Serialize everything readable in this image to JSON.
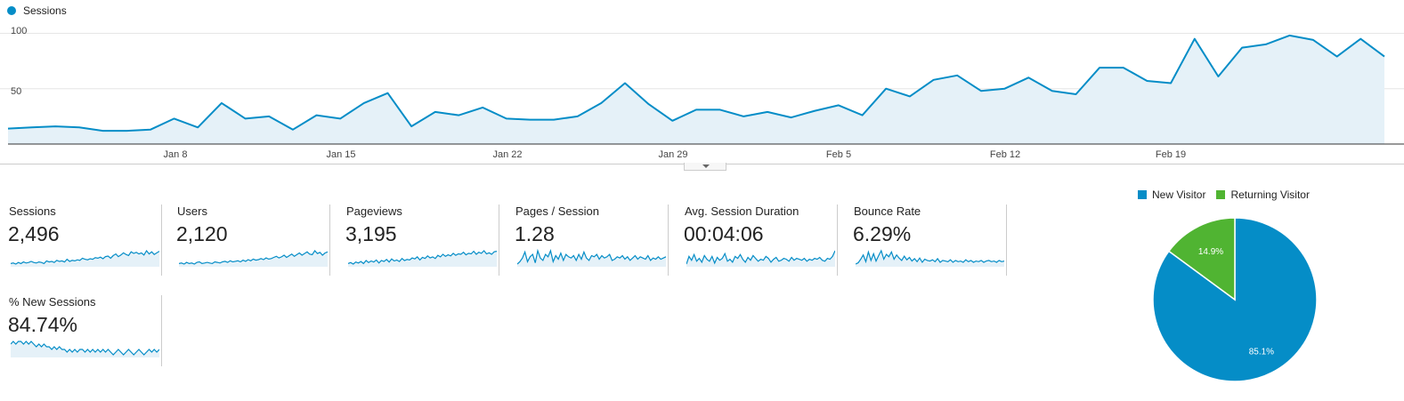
{
  "legend": {
    "label": "Sessions",
    "color": "#058dc7"
  },
  "chart_data": {
    "type": "area",
    "series": [
      {
        "name": "Sessions",
        "values": [
          14,
          15,
          16,
          15,
          12,
          12,
          13,
          23,
          15,
          37,
          23,
          25,
          13,
          26,
          23,
          37,
          46,
          16,
          29,
          26,
          33,
          23,
          22,
          22,
          25,
          37,
          55,
          36,
          21,
          31,
          31,
          25,
          29,
          24,
          30,
          35,
          26,
          50,
          43,
          58,
          62,
          48,
          50,
          60,
          48,
          45,
          69,
          69,
          57,
          55,
          95,
          61,
          87,
          90,
          98,
          94,
          79,
          95,
          79
        ]
      }
    ],
    "x_tick_labels": [
      "Jan 8",
      "Jan 15",
      "Jan 22",
      "Jan 29",
      "Feb 5",
      "Feb 12",
      "Feb 19"
    ],
    "y_tick_labels": [
      "100",
      "50"
    ],
    "ylim": [
      0,
      110
    ],
    "grid": true
  },
  "metrics": [
    {
      "label": "Sessions",
      "value": "2,496",
      "spark": [
        20,
        21,
        19,
        22,
        20,
        23,
        21,
        22,
        24,
        22,
        21,
        23,
        22,
        20,
        25,
        23,
        24,
        22,
        26,
        24,
        25,
        23,
        28,
        24,
        26,
        25,
        27,
        26,
        30,
        28,
        27,
        29,
        28,
        31,
        30,
        32,
        29,
        33,
        34,
        30,
        35,
        38,
        33,
        36,
        40,
        37,
        35,
        42,
        39,
        41,
        38,
        40,
        36,
        44,
        38,
        42,
        37,
        40,
        43
      ]
    },
    {
      "label": "Users",
      "value": "2,120",
      "spark": [
        21,
        22,
        20,
        23,
        21,
        22,
        20,
        23,
        24,
        21,
        22,
        23,
        22,
        21,
        24,
        23,
        22,
        24,
        25,
        23,
        26,
        24,
        25,
        26,
        24,
        27,
        25,
        28,
        26,
        29,
        27,
        28,
        30,
        28,
        31,
        29,
        30,
        32,
        34,
        31,
        33,
        36,
        32,
        35,
        38,
        34,
        37,
        40,
        36,
        39,
        42,
        38,
        37,
        44,
        39,
        41,
        36,
        40,
        42
      ]
    },
    {
      "label": "Pageviews",
      "value": "3,195",
      "spark": [
        20,
        22,
        19,
        23,
        21,
        24,
        20,
        26,
        22,
        25,
        23,
        27,
        21,
        26,
        24,
        28,
        23,
        29,
        25,
        27,
        24,
        30,
        26,
        28,
        27,
        31,
        29,
        33,
        27,
        32,
        30,
        35,
        31,
        33,
        30,
        36,
        33,
        38,
        34,
        37,
        35,
        40,
        36,
        39,
        38,
        42,
        37,
        40,
        39,
        44,
        38,
        42,
        40,
        45,
        39,
        41,
        38,
        43,
        44
      ]
    },
    {
      "label": "Pages / Session",
      "value": "1.28",
      "spark": [
        30,
        32,
        35,
        40,
        32,
        36,
        38,
        31,
        41,
        35,
        33,
        38,
        36,
        41,
        32,
        37,
        34,
        39,
        33,
        38,
        36,
        35,
        37,
        33,
        38,
        34,
        40,
        35,
        33,
        37,
        36,
        38,
        34,
        37,
        35,
        36,
        38,
        33,
        34,
        36,
        35,
        37,
        34,
        36,
        33,
        35,
        37,
        34,
        36,
        35,
        34,
        37,
        33,
        35,
        34,
        36,
        34,
        35,
        36
      ]
    },
    {
      "label": "Avg. Session Duration",
      "value": "00:04:06",
      "spark": [
        30,
        38,
        34,
        40,
        33,
        36,
        32,
        39,
        35,
        33,
        38,
        31,
        37,
        34,
        36,
        41,
        33,
        35,
        32,
        38,
        36,
        40,
        35,
        32,
        37,
        34,
        39,
        36,
        33,
        35,
        34,
        38,
        36,
        32,
        35,
        37,
        33,
        34,
        36,
        35,
        33,
        37,
        34,
        36,
        35,
        34,
        36,
        33,
        35,
        34,
        36,
        35,
        37,
        34,
        33,
        36,
        35,
        38,
        44
      ]
    },
    {
      "label": "Bounce Rate",
      "value": "6.29%",
      "spark": [
        30,
        32,
        38,
        45,
        34,
        50,
        36,
        47,
        35,
        44,
        52,
        38,
        46,
        42,
        50,
        38,
        45,
        40,
        36,
        43,
        37,
        41,
        35,
        39,
        34,
        40,
        33,
        38,
        36,
        35,
        37,
        34,
        39,
        33,
        36,
        35,
        34,
        37,
        33,
        36,
        34,
        35,
        33,
        37,
        34,
        36,
        33,
        35,
        34,
        36,
        33,
        35,
        36,
        34,
        35,
        33,
        36,
        34,
        35
      ]
    },
    {
      "label": "% New Sessions",
      "value": "84.74%",
      "spark": [
        40,
        41,
        40,
        41,
        41,
        40,
        41,
        40,
        41,
        40,
        39,
        40,
        39,
        40,
        39,
        39,
        38,
        39,
        38,
        39,
        38,
        38,
        37,
        38,
        37,
        38,
        37,
        38,
        38,
        37,
        38,
        37,
        38,
        37,
        38,
        37,
        38,
        37,
        38,
        37,
        36,
        37,
        38,
        37,
        36,
        37,
        38,
        37,
        36,
        37,
        38,
        37,
        36,
        37,
        38,
        37,
        38,
        37,
        38
      ]
    }
  ],
  "pie_chart": {
    "type": "pie",
    "labels": [
      "New Visitor",
      "Returning Visitor"
    ],
    "values": [
      85.1,
      14.9
    ],
    "slice_labels": [
      "85.1%",
      "14.9%"
    ],
    "colors": [
      "#058dc7",
      "#50b432"
    ]
  }
}
